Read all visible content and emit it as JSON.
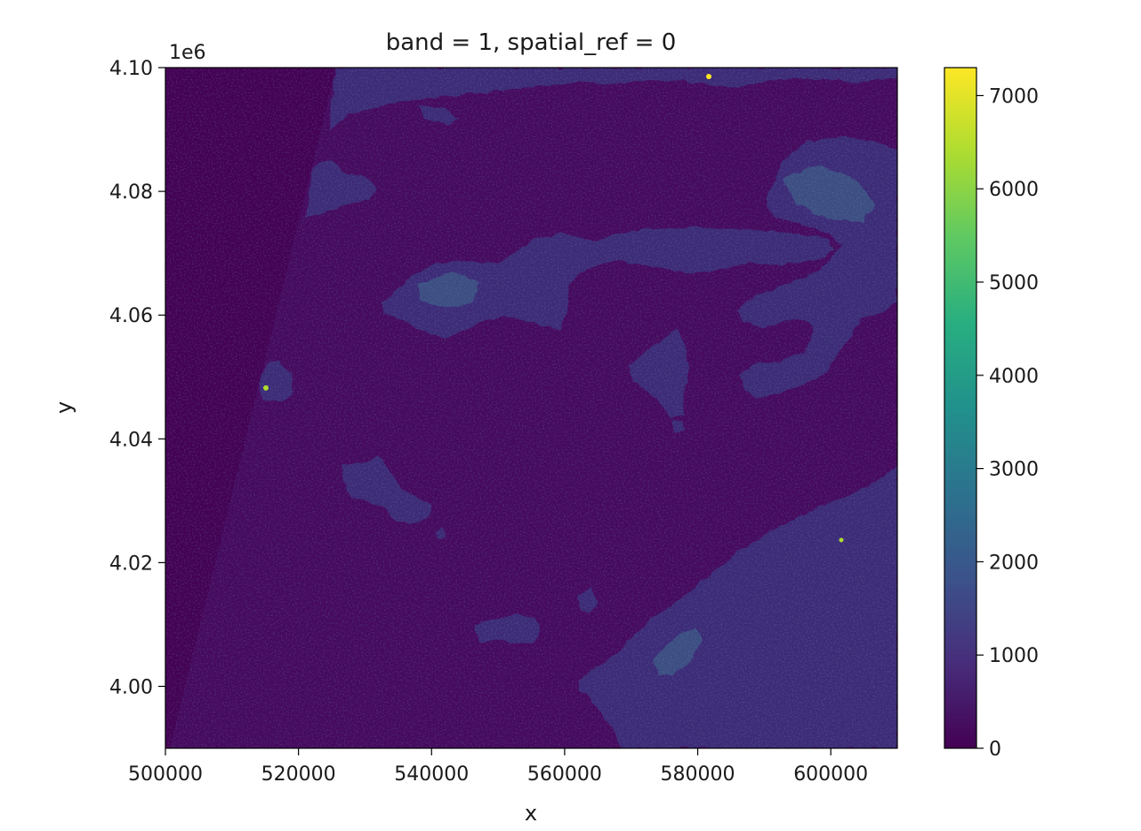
{
  "chart_data": {
    "type": "heatmap",
    "title": "band = 1, spatial_ref = 0",
    "xlabel": "x",
    "ylabel": "y",
    "y_offset_label": "1e6",
    "xlim": [
      500000,
      610000
    ],
    "ylim": [
      3990000,
      4100000
    ],
    "x_ticks": [
      500000,
      520000,
      540000,
      560000,
      580000,
      600000
    ],
    "x_tick_labels": [
      "500000",
      "520000",
      "540000",
      "560000",
      "580000",
      "600000"
    ],
    "y_ticks": [
      4000000,
      4020000,
      4040000,
      4060000,
      4080000,
      4100000
    ],
    "y_tick_labels": [
      "4.00",
      "4.02",
      "4.04",
      "4.06",
      "4.08",
      "4.10"
    ],
    "colorbar": {
      "colormap": "viridis",
      "vmin": 0,
      "vmax": 7300,
      "ticks": [
        0,
        1000,
        2000,
        3000,
        4000,
        5000,
        6000,
        7000
      ],
      "tick_labels": [
        "0",
        "1000",
        "2000",
        "3000",
        "4000",
        "5000",
        "6000",
        "7000"
      ]
    },
    "typical_values": {
      "no_data": 0,
      "sea": 330,
      "land": 1150
    },
    "grid": false
  }
}
